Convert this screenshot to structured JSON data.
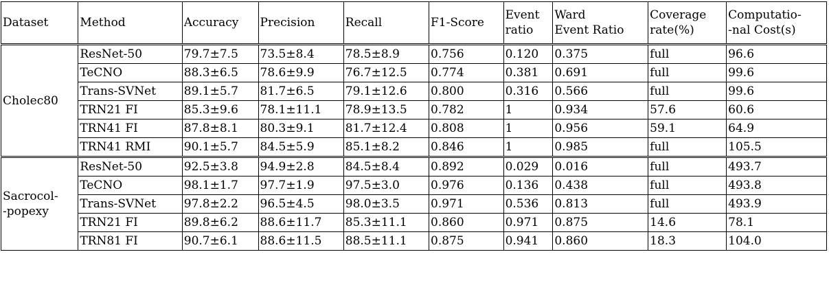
{
  "header": {
    "dataset": "Dataset",
    "method": "Method",
    "accuracy": "Accuracy",
    "precision": "Precision",
    "recall": "Recall",
    "f1": "F1-Score",
    "event_ratio": [
      "Event",
      "ratio"
    ],
    "ward_event_ratio": [
      "Ward",
      "Event Ratio"
    ],
    "coverage": [
      "Coverage",
      "rate(%)"
    ],
    "cost": [
      "Computatio-",
      "-nal Cost(s)"
    ]
  },
  "groups": [
    {
      "dataset": [
        "Cholec80"
      ],
      "rows": [
        [
          "ResNet-50",
          "79.7±7.5",
          "73.5±8.4",
          "78.5±8.9",
          "0.756",
          "0.120",
          "0.375",
          "full",
          "96.6"
        ],
        [
          "TeCNO",
          "88.3±6.5",
          "78.6±9.9",
          "76.7±12.5",
          "0.774",
          "0.381",
          "0.691",
          "full",
          "99.6"
        ],
        [
          "Trans-SVNet",
          "89.1±5.7",
          "81.7±6.5",
          "79.1±12.6",
          "0.800",
          "0.316",
          "0.566",
          "full",
          "99.6"
        ],
        [
          "TRN21 FI",
          "85.3±9.6",
          "78.1±11.1",
          "78.9±13.5",
          "0.782",
          "1",
          "0.934",
          "57.6",
          "60.6"
        ],
        [
          "TRN41 FI",
          "87.8±8.1",
          "80.3±9.1",
          "81.7±12.4",
          "0.808",
          "1",
          "0.956",
          "59.1",
          "64.9"
        ],
        [
          "TRN41 RMI",
          "90.1±5.7",
          "84.5±5.9",
          "85.1±8.2",
          "0.846",
          "1",
          "0.985",
          "full",
          "105.5"
        ]
      ]
    },
    {
      "dataset": [
        "Sacrocol-",
        "-popexy"
      ],
      "rows": [
        [
          "ResNet-50",
          "92.5±3.8",
          "94.9±2.8",
          "84.5±8.4",
          "0.892",
          "0.029",
          "0.016",
          "full",
          "493.7"
        ],
        [
          "TeCNO",
          "98.1±1.7",
          "97.7±1.9",
          "97.5±3.0",
          "0.976",
          "0.136",
          "0.438",
          "full",
          "493.8"
        ],
        [
          "Trans-SVNet",
          "97.8±2.2",
          "96.5±4.5",
          "98.0±3.5",
          "0.971",
          "0.536",
          "0.813",
          "full",
          "493.9"
        ],
        [
          "TRN21 FI",
          "89.8±6.2",
          "88.6±11.7",
          "85.3±11.1",
          "0.860",
          "0.971",
          "0.875",
          "14.6",
          "78.1"
        ],
        [
          "TRN81 FI",
          "90.7±6.1",
          "88.6±11.5",
          "88.5±11.1",
          "0.875",
          "0.941",
          "0.860",
          "18.3",
          "104.0"
        ]
      ]
    }
  ]
}
